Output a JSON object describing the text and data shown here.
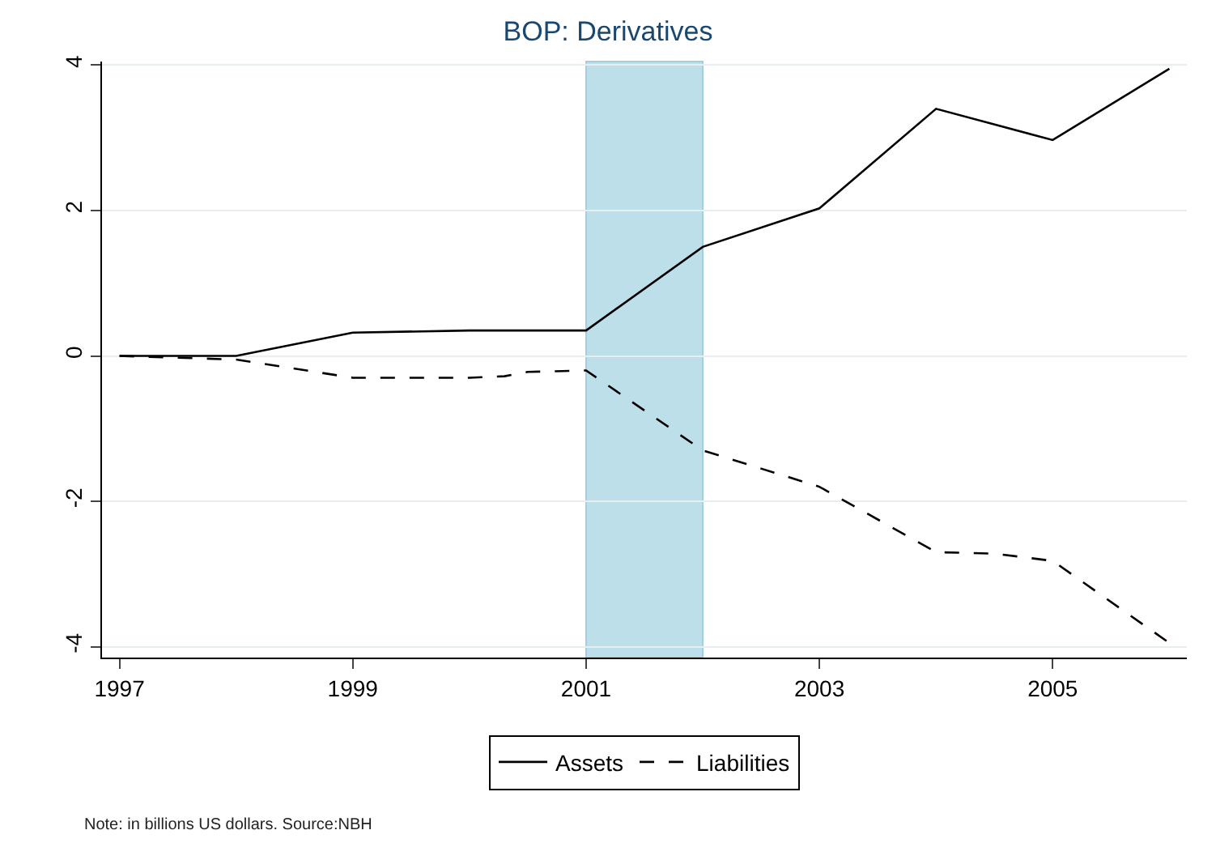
{
  "chart_data": {
    "type": "line",
    "title": "BOP: Derivatives",
    "series": [
      {
        "name": "Assets",
        "color": "#000000",
        "line_style": "solid",
        "x": [
          1997,
          1998,
          1999,
          2000,
          2001,
          2002,
          2003,
          2004,
          2005,
          2006
        ],
        "values": [
          0,
          0,
          0.32,
          0.35,
          0.35,
          1.5,
          2.03,
          3.4,
          2.97,
          3.95
        ]
      },
      {
        "name": "Liabilities",
        "color": "#000000",
        "line_style": "dashed",
        "x": [
          1997,
          1998,
          1999,
          2000,
          2000.3,
          2000.5,
          2001,
          2002,
          2002.4,
          2003,
          2004,
          2004.5,
          2005,
          2006
        ],
        "values": [
          0,
          -0.05,
          -0.3,
          -0.3,
          -0.28,
          -0.22,
          -0.2,
          -1.3,
          -1.5,
          -1.8,
          -2.7,
          -2.72,
          -2.82,
          -3.95
        ]
      }
    ],
    "xlim": [
      1996.85,
      2006.15
    ],
    "xticks": [
      1997,
      1999,
      2001,
      2003,
      2005
    ],
    "ylim": [
      -4.15,
      4.05
    ],
    "yticks": [
      -4,
      -2,
      0,
      2,
      4
    ],
    "grid": "y",
    "legend": "bottom",
    "bands": [
      {
        "axis": "x",
        "from": 2001,
        "to": 2002,
        "color": "#bcdfe9"
      }
    ],
    "annotations": [
      "Note: in billions US dollars. Source:NBH"
    ]
  }
}
